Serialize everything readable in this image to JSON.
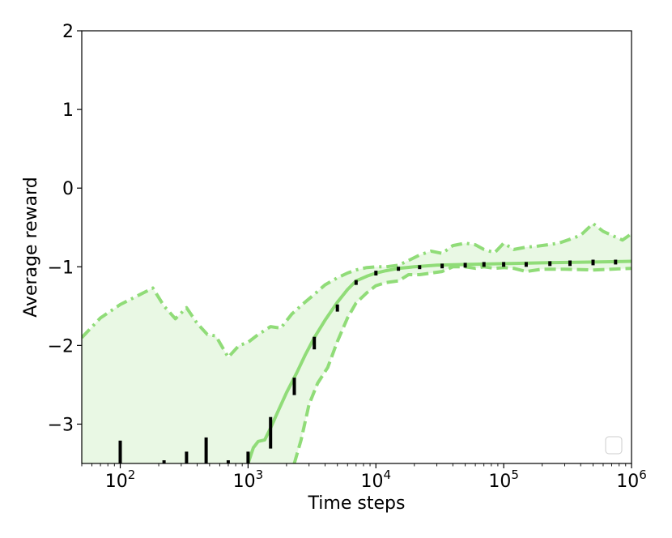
{
  "chart_data": {
    "type": "line",
    "title": "",
    "xlabel": "Time steps",
    "ylabel": "Average reward",
    "xscale": "log",
    "xlim": [
      50,
      1000000
    ],
    "ylim": [
      -3.5,
      2
    ],
    "xticks": [
      {
        "value": 100,
        "base": "10",
        "exp": "2"
      },
      {
        "value": 1000,
        "base": "10",
        "exp": "3"
      },
      {
        "value": 10000,
        "base": "10",
        "exp": "4"
      },
      {
        "value": 100000,
        "base": "10",
        "exp": "5"
      },
      {
        "value": 1000000,
        "base": "10",
        "exp": "6"
      }
    ],
    "yticks": [
      {
        "value": 2,
        "label": "2"
      },
      {
        "value": 1,
        "label": "1"
      },
      {
        "value": 0,
        "label": "0"
      },
      {
        "value": -1,
        "label": "−1"
      },
      {
        "value": -2,
        "label": "−2"
      },
      {
        "value": -3,
        "label": "−3"
      }
    ],
    "grid": false,
    "legend": {
      "position": "lower-right",
      "entries": []
    },
    "colors": {
      "series": "#90dc78",
      "fill": "#e9f8e4",
      "errorbar": "#000000"
    },
    "upper": {
      "style": "dashdot",
      "x": [
        50,
        70,
        100,
        140,
        180,
        220,
        270,
        330,
        400,
        480,
        560,
        700,
        850,
        1000,
        1200,
        1500,
        1800,
        2200,
        2700,
        3300,
        4000,
        5000,
        6000,
        7000,
        8500,
        10000,
        12000,
        15000,
        18000,
        22000,
        27000,
        33000,
        40000,
        50000,
        60000,
        70000,
        85000,
        100000,
        120000,
        150000,
        180000,
        220000,
        270000,
        330000,
        400000,
        500000,
        600000,
        700000,
        850000,
        1000000
      ],
      "y": [
        -1.9,
        -1.65,
        -1.48,
        -1.36,
        -1.27,
        -1.5,
        -1.66,
        -1.52,
        -1.72,
        -1.86,
        -1.88,
        -2.15,
        -2.0,
        -1.96,
        -1.86,
        -1.76,
        -1.78,
        -1.6,
        -1.47,
        -1.35,
        -1.23,
        -1.14,
        -1.08,
        -1.04,
        -1.01,
        -1.0,
        -1.0,
        -0.98,
        -0.92,
        -0.85,
        -0.8,
        -0.83,
        -0.73,
        -0.7,
        -0.72,
        -0.78,
        -0.82,
        -0.7,
        -0.78,
        -0.75,
        -0.74,
        -0.72,
        -0.7,
        -0.65,
        -0.6,
        -0.45,
        -0.55,
        -0.6,
        -0.66,
        -0.58
      ]
    },
    "mean": {
      "style": "solid",
      "x": [
        1000,
        1100,
        1200,
        1350,
        1500,
        1700,
        2000,
        2400,
        2800,
        3300,
        4000,
        5000,
        6000,
        7000,
        8500,
        10000,
        12000,
        15000,
        20000,
        30000,
        50000,
        100000,
        200000,
        500000,
        1000000
      ],
      "y": [
        -3.5,
        -3.3,
        -3.22,
        -3.2,
        -3.05,
        -2.85,
        -2.6,
        -2.35,
        -2.12,
        -1.9,
        -1.68,
        -1.45,
        -1.29,
        -1.18,
        -1.12,
        -1.08,
        -1.05,
        -1.02,
        -1.0,
        -0.98,
        -0.97,
        -0.96,
        -0.95,
        -0.94,
        -0.93
      ]
    },
    "lower": {
      "style": "dashed",
      "x": [
        2300,
        2600,
        3000,
        3500,
        4200,
        5000,
        6000,
        7000,
        8500,
        10000,
        12000,
        15000,
        18000,
        22000,
        27000,
        33000,
        40000,
        50000,
        60000,
        70000,
        85000,
        100000,
        120000,
        150000,
        200000,
        300000,
        500000,
        700000,
        1000000
      ],
      "y": [
        -3.5,
        -3.2,
        -2.75,
        -2.48,
        -2.28,
        -1.95,
        -1.65,
        -1.46,
        -1.33,
        -1.24,
        -1.2,
        -1.18,
        -1.1,
        -1.1,
        -1.08,
        -1.06,
        -1.0,
        -1.0,
        -1.02,
        -1.0,
        -1.02,
        -1.01,
        -1.02,
        -1.06,
        -1.03,
        -1.03,
        -1.04,
        -1.03,
        -1.02
      ]
    },
    "errorbars": [
      {
        "x": 100,
        "low": -3.5,
        "high": -3.22
      },
      {
        "x": 220,
        "low": -3.5,
        "high": -3.47
      },
      {
        "x": 330,
        "low": -3.5,
        "high": -3.36
      },
      {
        "x": 470,
        "low": -3.5,
        "high": -3.18
      },
      {
        "x": 700,
        "low": -3.5,
        "high": -3.47
      },
      {
        "x": 1000,
        "low": -3.5,
        "high": -3.36
      },
      {
        "x": 1500,
        "low": -3.3,
        "high": -2.92
      },
      {
        "x": 2300,
        "low": -2.62,
        "high": -2.42
      },
      {
        "x": 3300,
        "low": -2.04,
        "high": -1.9
      },
      {
        "x": 5000,
        "low": -1.56,
        "high": -1.49
      },
      {
        "x": 7000,
        "low": -1.22,
        "high": -1.18
      },
      {
        "x": 10000,
        "low": -1.1,
        "high": -1.06
      },
      {
        "x": 15000,
        "low": -1.04,
        "high": -1.01
      },
      {
        "x": 22000,
        "low": -1.02,
        "high": -0.99
      },
      {
        "x": 33000,
        "low": -1.01,
        "high": -0.97
      },
      {
        "x": 50000,
        "low": -1.0,
        "high": -0.96
      },
      {
        "x": 70000,
        "low": -0.99,
        "high": -0.95
      },
      {
        "x": 100000,
        "low": -0.99,
        "high": -0.95
      },
      {
        "x": 150000,
        "low": -0.99,
        "high": -0.95
      },
      {
        "x": 230000,
        "low": -0.98,
        "high": -0.94
      },
      {
        "x": 330000,
        "low": -0.98,
        "high": -0.93
      },
      {
        "x": 500000,
        "low": -0.97,
        "high": -0.92
      },
      {
        "x": 750000,
        "low": -0.96,
        "high": -0.92
      }
    ]
  }
}
